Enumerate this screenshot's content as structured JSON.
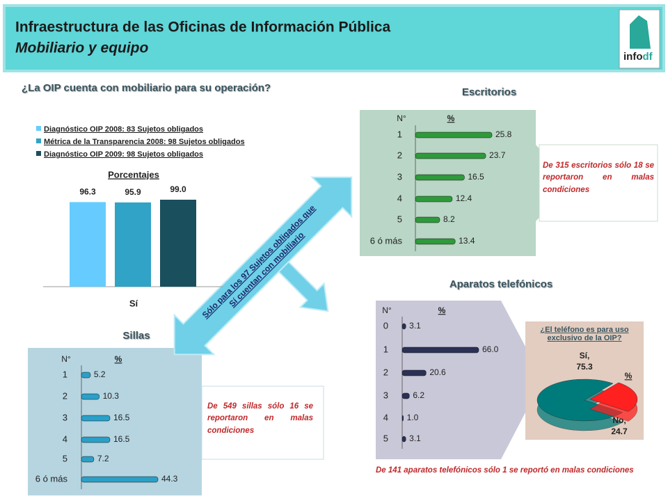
{
  "header": {
    "title": "Infraestructura de las Oficinas de Información Pública",
    "subtitle": "Mobiliario y equipo",
    "logo": "info",
    "logo_suffix": "df"
  },
  "arrow_text": [
    "Sólo para los 97 Sujetos obligados que",
    "Sí cuentan con mobiliario"
  ],
  "chart_data": [
    {
      "type": "bar",
      "title": "¿La OIP cuenta con mobiliario para su operación?",
      "subtitle": "Porcentajes",
      "categories": [
        "Sí"
      ],
      "series": [
        {
          "name": "Diagnóstico OIP 2008: 83 Sujetos obligados",
          "color": "#66ccff",
          "values": [
            96.3
          ]
        },
        {
          "name": "Métrica de la Transparencia 2008: 98 Sujetos obligados",
          "color": "#31a3c6",
          "values": [
            95.9
          ]
        },
        {
          "name": "Diagnóstico OIP 2009: 98 Sujetos obligados",
          "color": "#1a4f5e",
          "values": [
            99.0
          ],
          "value_labels": [
            "99.0"
          ]
        }
      ]
    },
    {
      "type": "hbar",
      "title": "Escritorios",
      "columns": [
        "N°",
        "%"
      ],
      "categories": [
        "1",
        "2",
        "3",
        "4",
        "5",
        "6 ó más"
      ],
      "values": [
        25.8,
        23.7,
        16.5,
        12.4,
        8.2,
        13.4
      ],
      "color": "#2e9a3a",
      "note": "De 315 escritorios sólo 18 se reportaron en malas condiciones"
    },
    {
      "type": "hbar",
      "title": "Sillas",
      "columns": [
        "N°",
        "%"
      ],
      "categories": [
        "1",
        "2",
        "3",
        "4",
        "5",
        "6 ó más"
      ],
      "values": [
        5.2,
        10.3,
        16.5,
        16.5,
        7.2,
        44.3
      ],
      "color": "#2aa0c8",
      "note": "De 549 sillas sólo 16 se reportaron en malas condiciones"
    },
    {
      "type": "hbar",
      "title": "Aparatos telefónicos",
      "columns": [
        "N°",
        "%"
      ],
      "categories": [
        "0",
        "1",
        "2",
        "3",
        "4",
        "5"
      ],
      "values": [
        3.1,
        66.0,
        20.6,
        6.2,
        1.0,
        3.1
      ],
      "value_labels": [
        "3.1",
        "66.0",
        "20.6",
        "6.2",
        "1.0",
        "3.1"
      ],
      "color": "#2b3055",
      "note": "De 141 aparatos telefónicos sólo 1 se reportó en malas condiciones"
    },
    {
      "type": "pie",
      "title": "¿El teléfono es para uso exclusivo de la OIP?",
      "unit": "%",
      "categories": [
        "Sí,",
        "No,"
      ],
      "values": [
        75.3,
        24.7
      ],
      "colors": [
        "#007b7b",
        "#ff2020"
      ]
    }
  ]
}
